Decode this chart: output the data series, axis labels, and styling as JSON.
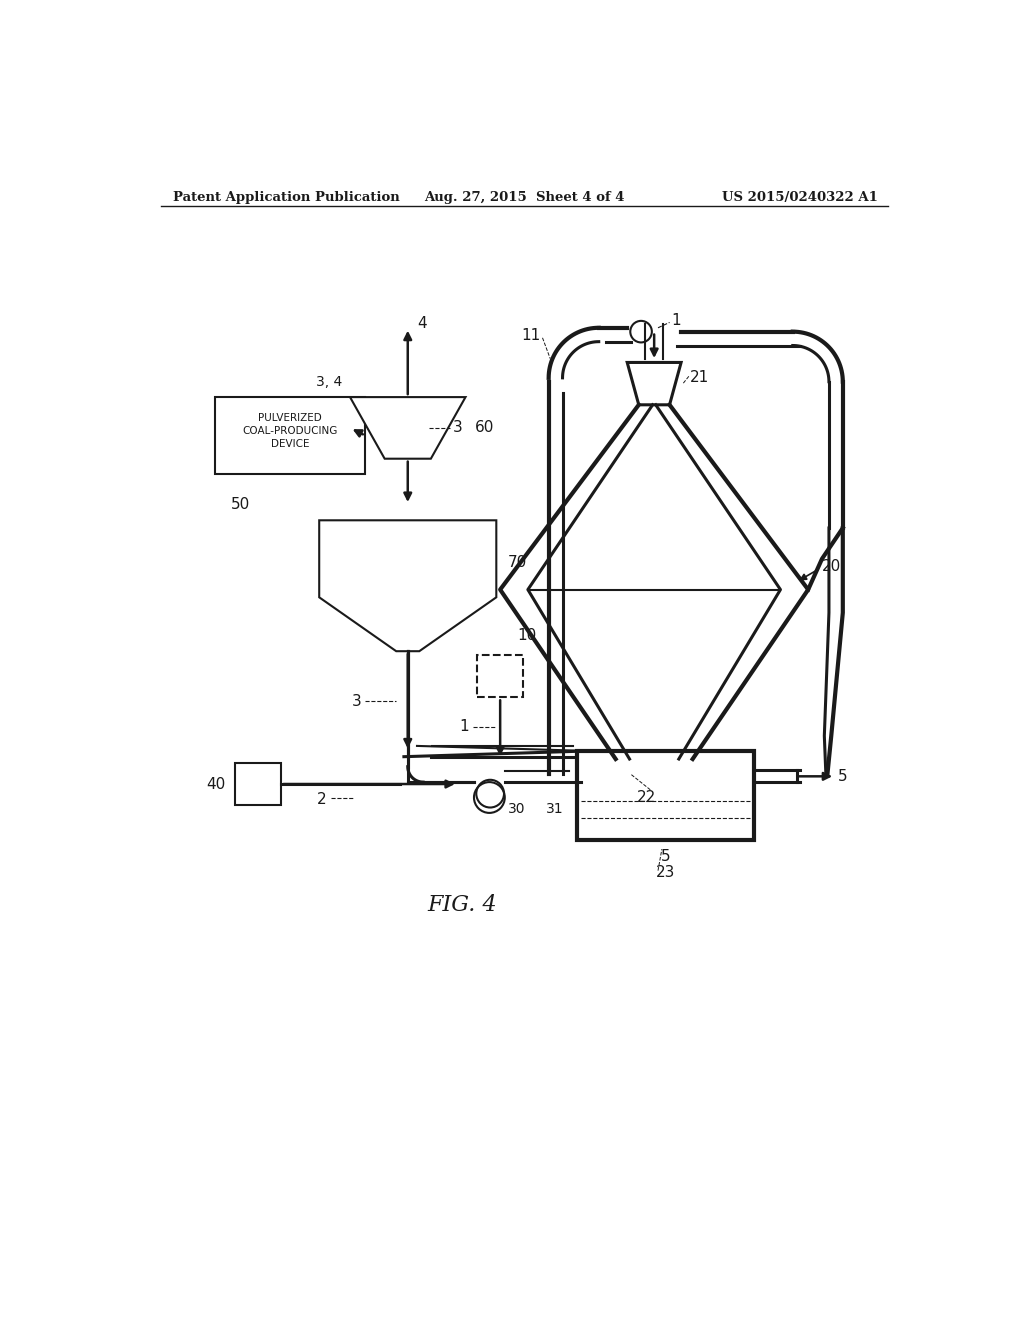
{
  "bg_color": "#ffffff",
  "line_color": "#1a1a1a",
  "header_left": "Patent Application Publication",
  "header_mid": "Aug. 27, 2015  Sheet 4 of 4",
  "header_right": "US 2015/0240322 A1",
  "fig_label": "FIG. 4",
  "label_fontsize": 11,
  "small_fontsize": 9.5
}
